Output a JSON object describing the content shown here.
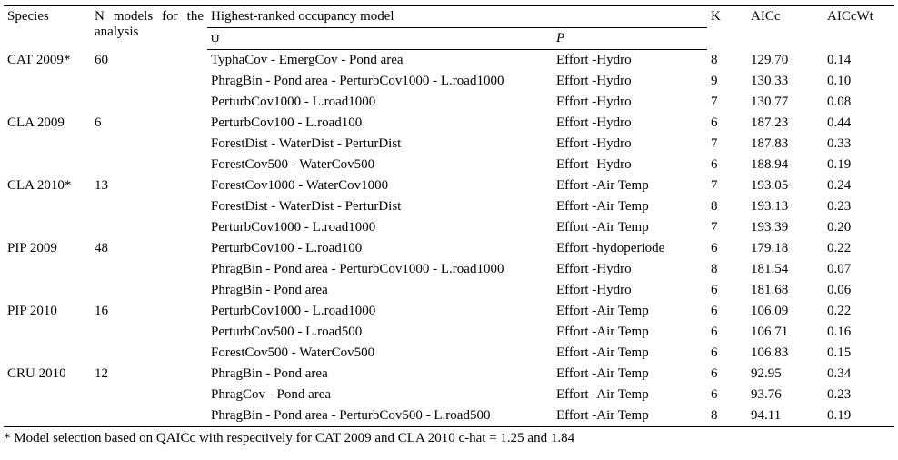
{
  "header": {
    "species": "Species",
    "nmodels": "N models for the analysis",
    "highest": "Highest-ranked occupancy model",
    "psi": "ψ",
    "p_italic": "P",
    "k": "K",
    "aicc": "AICc",
    "aiccwt": "AICcWt"
  },
  "groups": [
    {
      "species": "CAT 2009*",
      "n": "60",
      "rows": [
        {
          "psi": "TyphaCov -  EmergCov - Pond area",
          "p": "Effort -Hydro",
          "k": "8",
          "aicc": "129.70",
          "wt": "0.14"
        },
        {
          "psi": "PhragBin - Pond area - PerturbCov1000 - L.road1000",
          "p": "Effort -Hydro",
          "k": "9",
          "aicc": "130.33",
          "wt": "0.10"
        },
        {
          "psi": "PerturbCov1000 - L.road1000",
          "p": "Effort -Hydro",
          "k": "7",
          "aicc": "130.77",
          "wt": "0.08"
        }
      ]
    },
    {
      "species": "CLA 2009",
      "n": "6",
      "rows": [
        {
          "psi": "PerturbCov100 - L.road100",
          "p": "Effort -Hydro",
          "k": "6",
          "aicc": "187.23",
          "wt": "0.44"
        },
        {
          "psi": "ForestDist - WaterDist - PerturDist",
          "p": "Effort -Hydro",
          "k": "7",
          "aicc": "187.83",
          "wt": "0.33"
        },
        {
          "psi": "ForestCov500 - WaterCov500",
          "p": "Effort -Hydro",
          "k": "6",
          "aicc": "188.94",
          "wt": "0.19"
        }
      ]
    },
    {
      "species": "CLA 2010*",
      "n": "13",
      "rows": [
        {
          "psi": "ForestCov1000 - WaterCov1000",
          "p": "Effort -Air Temp",
          "k": "7",
          "aicc": "193.05",
          "wt": "0.24"
        },
        {
          "psi": "ForestDist - WaterDist - PerturDist",
          "p": "Effort -Air Temp",
          "k": "8",
          "aicc": "193.13",
          "wt": "0.23"
        },
        {
          "psi": "PerturbCov1000 - L.road1000",
          "p": "Effort -Air Temp",
          "k": "7",
          "aicc": "193.39",
          "wt": "0.20"
        }
      ]
    },
    {
      "species": "PIP 2009",
      "n": "48",
      "rows": [
        {
          "psi": "PerturbCov100 - L.road100",
          "p": "Effort -hydoperiode",
          "k": "6",
          "aicc": "179.18",
          "wt": "0.22"
        },
        {
          "psi": "PhragBin - Pond area - PerturbCov1000 - L.road1000",
          "p": "Effort -Hydro",
          "k": "8",
          "aicc": "181.54",
          "wt": "0.07"
        },
        {
          "psi": "PhragBin - Pond area",
          "p": "Effort -Hydro",
          "k": "6",
          "aicc": "181.68",
          "wt": "0.06"
        }
      ]
    },
    {
      "species": "PIP 2010",
      "n": "16",
      "rows": [
        {
          "psi": "PerturbCov1000 - L.road1000",
          "p": "Effort -Air Temp",
          "k": "6",
          "aicc": "106.09",
          "wt": "0.22"
        },
        {
          "psi": "PerturbCov500 - L.road500",
          "p": "Effort -Air Temp",
          "k": "6",
          "aicc": "106.71",
          "wt": "0.16"
        },
        {
          "psi": "ForestCov500 - WaterCov500",
          "p": "Effort -Air Temp",
          "k": "6",
          "aicc": "106.83",
          "wt": "0.15"
        }
      ]
    },
    {
      "species": "CRU 2010",
      "n": "12",
      "rows": [
        {
          "psi": "PhragBin - Pond area",
          "p": "Effort -Air Temp",
          "k": "6",
          "aicc": "92.95",
          "wt": "0.34"
        },
        {
          "psi": "PhragCov - Pond area",
          "p": "Effort -Air Temp",
          "k": "6",
          "aicc": "93.76",
          "wt": "0.23"
        },
        {
          "psi": "PhragBin - Pond area - PerturbCov500 - L.road500",
          "p": "Effort -Air Temp",
          "k": "8",
          "aicc": "94.11",
          "wt": "0.19"
        }
      ]
    }
  ],
  "footnote": "* Model selection based on QAICc with  respectively for CAT 2009 and CLA 2010  c-hat = 1.25 and 1.84",
  "style": {
    "font_family": "Times New Roman",
    "font_size_pt": 11,
    "text_color": "#000000",
    "background_color": "#ffffff",
    "border_color": "#000000"
  }
}
